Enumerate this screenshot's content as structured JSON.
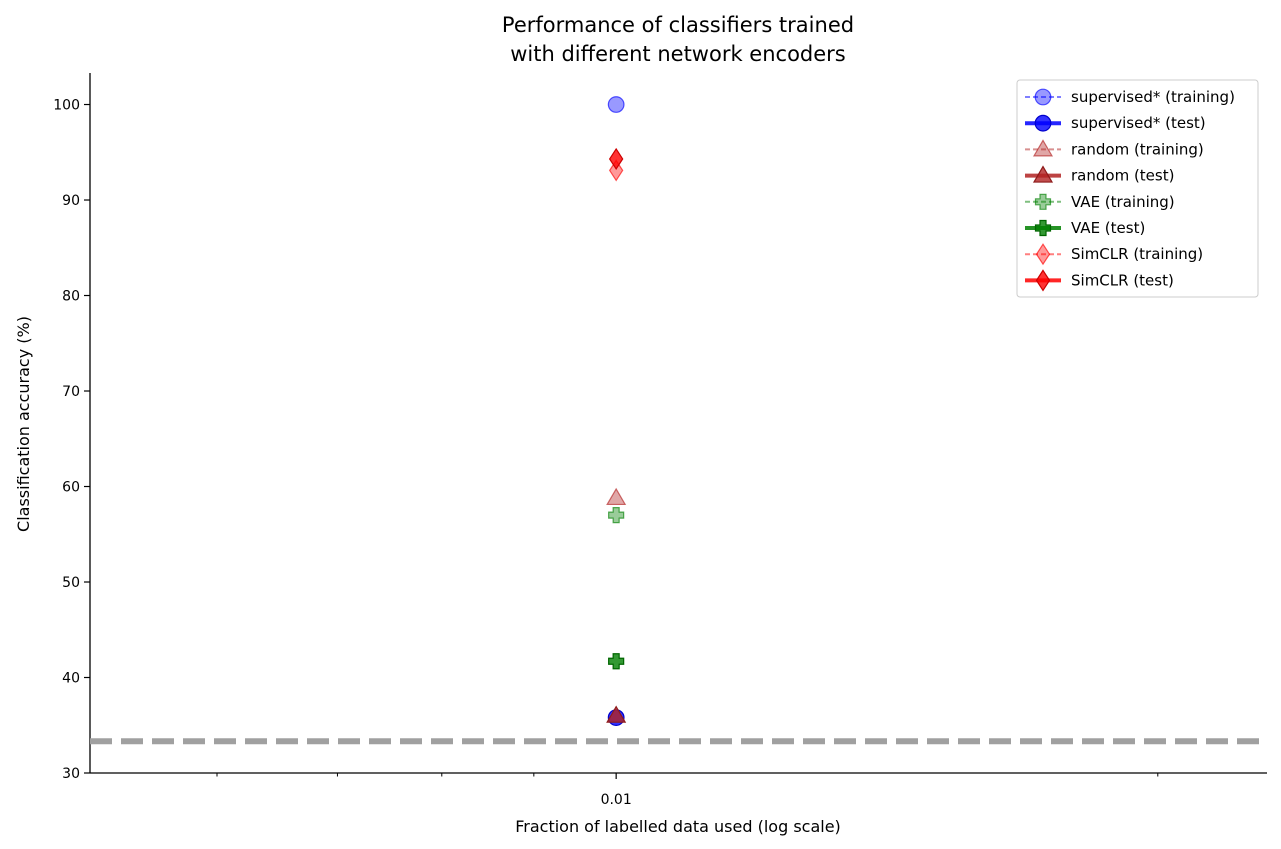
{
  "chart_data": {
    "type": "scatter",
    "title_line1": "Performance of classifiers trained",
    "title_line2": "with different network encoders",
    "xlabel": "Fraction of labelled data used (log scale)",
    "ylabel": "Classification accuracy (%)",
    "xscale": "log",
    "xlim": [
      0.0051,
      0.023
    ],
    "ylim": [
      30,
      103.3
    ],
    "yticks": [
      30,
      40,
      50,
      60,
      70,
      80,
      90,
      100
    ],
    "xticks": [
      {
        "value": 0.01,
        "label": "0.01"
      }
    ],
    "chance_level": 33.33,
    "chance_color": "#a0a0a0",
    "grid": false,
    "legend_position": "top-right",
    "series": [
      {
        "name": "supervised* (training)",
        "marker": "circle",
        "color": "#0000ff",
        "alpha": 0.4,
        "x": [
          0.01
        ],
        "y": [
          100.0
        ]
      },
      {
        "name": "supervised* (test)",
        "marker": "circle",
        "color": "#0000ff",
        "alpha": 0.8,
        "x": [
          0.01
        ],
        "y": [
          35.8
        ]
      },
      {
        "name": "random (training)",
        "marker": "triangle",
        "color": "#b22222",
        "alpha": 0.4,
        "x": [
          0.01
        ],
        "y": [
          58.8
        ]
      },
      {
        "name": "random (test)",
        "marker": "triangle",
        "color": "#b22222",
        "alpha": 0.8,
        "x": [
          0.01
        ],
        "y": [
          36.0
        ]
      },
      {
        "name": "VAE (training)",
        "marker": "plus",
        "color": "#008000",
        "alpha": 0.4,
        "x": [
          0.01
        ],
        "y": [
          57.0
        ]
      },
      {
        "name": "VAE (test)",
        "marker": "plus",
        "color": "#008000",
        "alpha": 0.8,
        "x": [
          0.01
        ],
        "y": [
          41.7
        ]
      },
      {
        "name": "SimCLR (training)",
        "marker": "diamond",
        "color": "#ff0000",
        "alpha": 0.4,
        "x": [
          0.01
        ],
        "y": [
          93.1
        ]
      },
      {
        "name": "SimCLR (test)",
        "marker": "diamond",
        "color": "#ff0000",
        "alpha": 0.8,
        "x": [
          0.01
        ],
        "y": [
          94.3
        ]
      }
    ]
  }
}
